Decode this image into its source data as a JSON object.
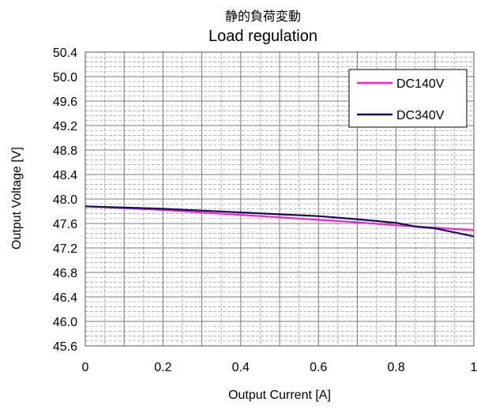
{
  "chart_data": {
    "type": "line",
    "title": "静的負荷変動",
    "subtitle": "Load regulation",
    "xlabel": "Output Current [A]",
    "ylabel": "Output Voltage [V]",
    "xlim": [
      0,
      1
    ],
    "ylim": [
      45.6,
      50.4
    ],
    "x_ticks": [
      "0",
      "0.2",
      "0.4",
      "0.6",
      "0.8",
      "1"
    ],
    "y_ticks": [
      "50.4",
      "50.0",
      "49.6",
      "49.2",
      "48.8",
      "48.4",
      "48.0",
      "47.6",
      "47.2",
      "46.8",
      "46.4",
      "46.0",
      "45.6"
    ],
    "grid": true,
    "legend_position": "top-right",
    "series": [
      {
        "name": "DC140V",
        "color": "#ff1fd0",
        "x": [
          0,
          0.1,
          0.2,
          0.3,
          0.4,
          0.5,
          0.6,
          0.7,
          0.8,
          0.9,
          1.0
        ],
        "y": [
          47.88,
          47.85,
          47.82,
          47.78,
          47.74,
          47.7,
          47.66,
          47.62,
          47.57,
          47.53,
          47.49
        ]
      },
      {
        "name": "DC340V",
        "color": "#0d0d5c",
        "x": [
          0,
          0.1,
          0.2,
          0.3,
          0.4,
          0.5,
          0.6,
          0.7,
          0.8,
          0.85,
          0.9,
          1.0
        ],
        "y": [
          47.88,
          47.86,
          47.84,
          47.81,
          47.78,
          47.75,
          47.72,
          47.67,
          47.61,
          47.55,
          47.52,
          47.39
        ]
      }
    ]
  }
}
